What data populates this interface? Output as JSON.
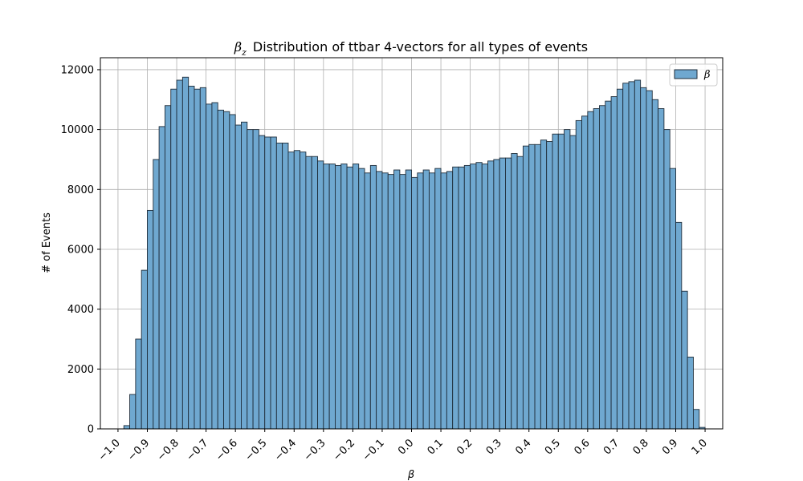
{
  "chart_data": {
    "type": "bar",
    "title": "Distribution of ttbar 4-vectors for all types of events",
    "title_symbol": "β",
    "title_symbol_sub": "z",
    "xlabel": "β",
    "ylabel": "# of Events",
    "legend": [
      "β"
    ],
    "legend_position": "top-right",
    "grid": true,
    "bar_color": "#6fa8d0",
    "bar_edge_color": "#1f2d3a",
    "xlim": [
      -1.06,
      1.06
    ],
    "ylim": [
      0,
      12400
    ],
    "xticks": [
      -1.0,
      -0.9,
      -0.8,
      -0.7,
      -0.6,
      -0.5,
      -0.4,
      -0.3,
      -0.2,
      -0.1,
      0.0,
      0.1,
      0.2,
      0.3,
      0.4,
      0.5,
      0.6,
      0.7,
      0.8,
      0.9,
      1.0
    ],
    "xtick_labels": [
      "−1.0",
      "−0.9",
      "−0.8",
      "−0.7",
      "−0.6",
      "−0.5",
      "−0.4",
      "−0.3",
      "−0.2",
      "−0.1",
      "0.0",
      "0.1",
      "0.2",
      "0.3",
      "0.4",
      "0.5",
      "0.6",
      "0.7",
      "0.8",
      "0.9",
      "1.0"
    ],
    "yticks": [
      0,
      2000,
      4000,
      6000,
      8000,
      10000,
      12000
    ],
    "ytick_labels": [
      "0",
      "2000",
      "4000",
      "6000",
      "8000",
      "10000",
      "12000"
    ],
    "bin_start": -0.98,
    "bin_width": 0.02,
    "values": [
      110,
      1150,
      3000,
      5300,
      7300,
      9000,
      10100,
      10800,
      11350,
      11650,
      11750,
      11450,
      11350,
      11400,
      10850,
      10900,
      10650,
      10600,
      10500,
      10150,
      10250,
      10000,
      10000,
      9800,
      9750,
      9750,
      9550,
      9550,
      9250,
      9300,
      9250,
      9100,
      9100,
      8950,
      8850,
      8850,
      8800,
      8850,
      8750,
      8850,
      8700,
      8550,
      8800,
      8600,
      8550,
      8500,
      8650,
      8500,
      8650,
      8400,
      8550,
      8650,
      8550,
      8700,
      8550,
      8600,
      8750,
      8750,
      8800,
      8850,
      8900,
      8850,
      8950,
      9000,
      9050,
      9050,
      9200,
      9100,
      9450,
      9500,
      9500,
      9650,
      9600,
      9850,
      9850,
      10000,
      9800,
      10300,
      10450,
      10600,
      10700,
      10800,
      10950,
      11100,
      11350,
      11550,
      11600,
      11650,
      11400,
      11300,
      11000,
      10700,
      10000,
      8700,
      6900,
      4600,
      2400,
      650,
      50
    ]
  }
}
